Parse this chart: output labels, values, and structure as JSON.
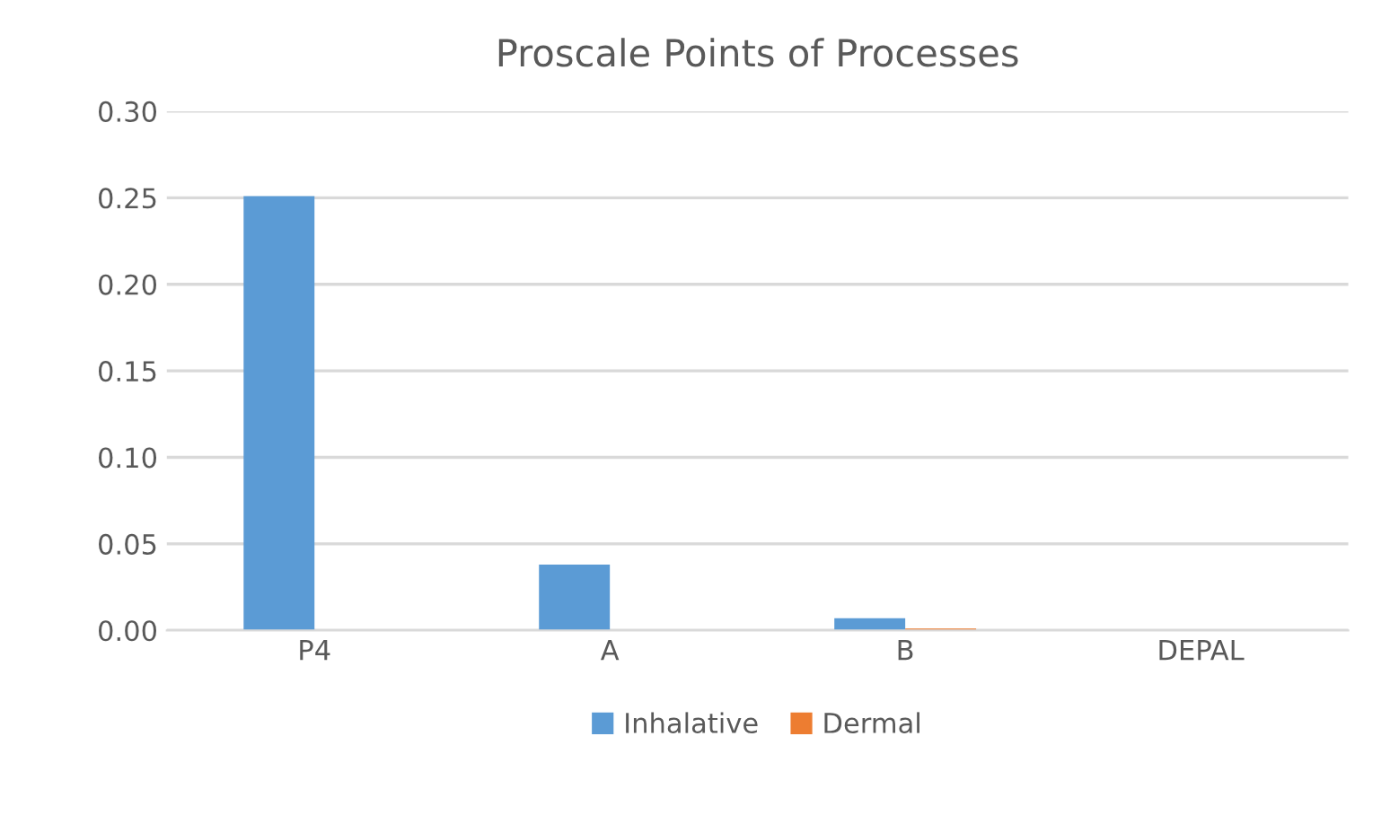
{
  "chart_data": {
    "type": "bar",
    "title": "Proscale Points of Processes",
    "categories": [
      "P4",
      "A",
      "B",
      "DEPAL"
    ],
    "series": [
      {
        "name": "Inhalative",
        "color": "#5b9bd5",
        "values": [
          0.251,
          0.038,
          0.007,
          0
        ]
      },
      {
        "name": "Dermal",
        "color": "#ed7d31",
        "values": [
          0,
          0,
          0.001,
          0
        ]
      }
    ],
    "ylim": [
      0,
      0.3
    ],
    "yticks": [
      {
        "value": 0,
        "label": "0.00"
      },
      {
        "value": 0.05,
        "label": "0.05"
      },
      {
        "value": 0.1,
        "label": "0.10"
      },
      {
        "value": 0.15,
        "label": "0.15"
      },
      {
        "value": 0.2,
        "label": "0.20"
      },
      {
        "value": 0.25,
        "label": "0.25"
      },
      {
        "value": 0.3,
        "label": "0.30"
      }
    ],
    "grid": "y",
    "legend": "bottom"
  }
}
